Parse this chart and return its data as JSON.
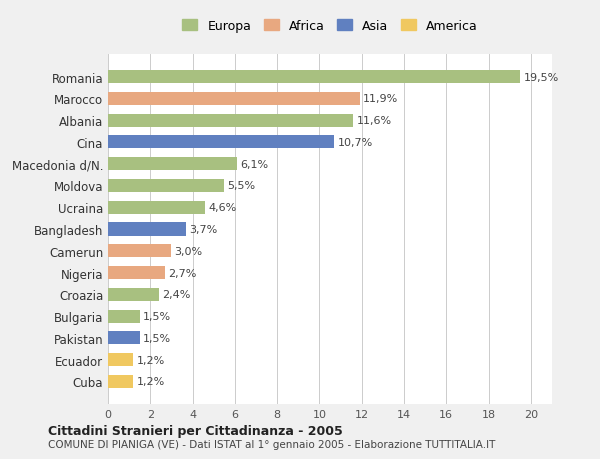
{
  "countries": [
    "Romania",
    "Marocco",
    "Albania",
    "Cina",
    "Macedonia d/N.",
    "Moldova",
    "Ucraina",
    "Bangladesh",
    "Camerun",
    "Nigeria",
    "Croazia",
    "Bulgaria",
    "Pakistan",
    "Ecuador",
    "Cuba"
  ],
  "values": [
    19.5,
    11.9,
    11.6,
    10.7,
    6.1,
    5.5,
    4.6,
    3.7,
    3.0,
    2.7,
    2.4,
    1.5,
    1.5,
    1.2,
    1.2
  ],
  "labels": [
    "19,5%",
    "11,9%",
    "11,6%",
    "10,7%",
    "6,1%",
    "5,5%",
    "4,6%",
    "3,7%",
    "3,0%",
    "2,7%",
    "2,4%",
    "1,5%",
    "1,5%",
    "1,2%",
    "1,2%"
  ],
  "continents": [
    "Europa",
    "Africa",
    "Europa",
    "Asia",
    "Europa",
    "Europa",
    "Europa",
    "Asia",
    "Africa",
    "Africa",
    "Europa",
    "Europa",
    "Asia",
    "America",
    "America"
  ],
  "colors": {
    "Europa": "#a8c080",
    "Africa": "#e8a880",
    "Asia": "#6080c0",
    "America": "#f0c860"
  },
  "legend_order": [
    "Europa",
    "Africa",
    "Asia",
    "America"
  ],
  "title": "Cittadini Stranieri per Cittadinanza - 2005",
  "subtitle": "COMUNE DI PIANIGA (VE) - Dati ISTAT al 1° gennaio 2005 - Elaborazione TUTTITALIA.IT",
  "xlabel": "",
  "xlim": [
    0,
    21
  ],
  "xticks": [
    0,
    2,
    4,
    6,
    8,
    10,
    12,
    14,
    16,
    18,
    20
  ],
  "background_color": "#f0f0f0",
  "plot_bg_color": "#ffffff",
  "grid_color": "#cccccc"
}
